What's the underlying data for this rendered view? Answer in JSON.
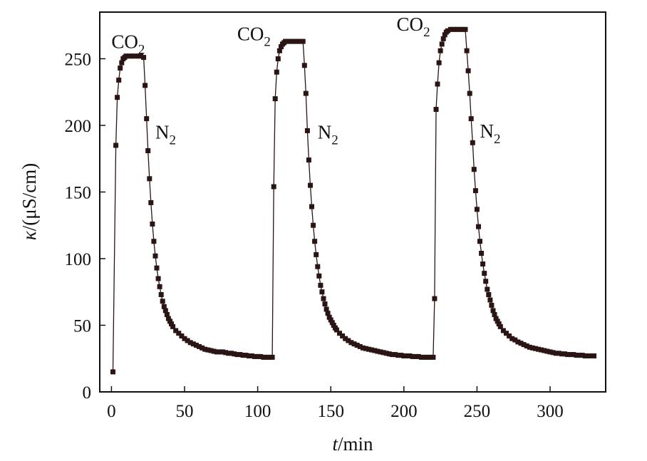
{
  "chart_data": {
    "type": "scatter",
    "title": "",
    "xlabel": {
      "symbol": "t",
      "unit": "/min"
    },
    "ylabel": {
      "symbol": "κ",
      "unit": "/(μS/cm)"
    },
    "xlim": [
      -8,
      338
    ],
    "ylim": [
      0,
      285
    ],
    "x_ticks": [
      0,
      50,
      100,
      150,
      200,
      250,
      300
    ],
    "y_ticks": [
      0,
      50,
      100,
      150,
      200,
      250
    ],
    "grid": false,
    "legend": "none",
    "marker": "square",
    "colors": {
      "series": "#2a1414",
      "axis": "#111111"
    },
    "annotations": [
      {
        "base": "CO",
        "sub": "2",
        "x": 0,
        "y": 258
      },
      {
        "base": "N",
        "sub": "2",
        "x": 30,
        "y": 190
      },
      {
        "base": "CO",
        "sub": "2",
        "x": 86,
        "y": 264
      },
      {
        "base": "N",
        "sub": "2",
        "x": 141,
        "y": 190
      },
      {
        "base": "CO",
        "sub": "2",
        "x": 195,
        "y": 271
      },
      {
        "base": "N",
        "sub": "2",
        "x": 252,
        "y": 191
      }
    ],
    "series": [
      {
        "values": [
          [
            1,
            15
          ],
          [
            3,
            185
          ],
          [
            4,
            221
          ],
          [
            5,
            234
          ],
          [
            6,
            243
          ],
          [
            7,
            247
          ],
          [
            8,
            250
          ],
          [
            9,
            251
          ],
          [
            10,
            252
          ],
          [
            12,
            252
          ],
          [
            14,
            252
          ],
          [
            16,
            252
          ],
          [
            18,
            252
          ],
          [
            20,
            252
          ],
          [
            22,
            251
          ],
          [
            23,
            230
          ],
          [
            24,
            205
          ],
          [
            25,
            181
          ],
          [
            26,
            160
          ],
          [
            27,
            142
          ],
          [
            28,
            126
          ],
          [
            29,
            113
          ],
          [
            30,
            102
          ],
          [
            31,
            93
          ],
          [
            32,
            85
          ],
          [
            33,
            79
          ],
          [
            34,
            73
          ],
          [
            35,
            68
          ],
          [
            36,
            64
          ],
          [
            37,
            61
          ],
          [
            38,
            58
          ],
          [
            39,
            55
          ],
          [
            40,
            53
          ],
          [
            41,
            51
          ],
          [
            42,
            49
          ],
          [
            44,
            46
          ],
          [
            46,
            44
          ],
          [
            48,
            42
          ],
          [
            50,
            40
          ],
          [
            52,
            38.5
          ],
          [
            54,
            37
          ],
          [
            56,
            36
          ],
          [
            58,
            35
          ],
          [
            60,
            34
          ],
          [
            62,
            33
          ],
          [
            64,
            32
          ],
          [
            66,
            31.5
          ],
          [
            68,
            31
          ],
          [
            70,
            30.5
          ],
          [
            72,
            30
          ],
          [
            74,
            30
          ],
          [
            76,
            30
          ],
          [
            78,
            29.5
          ],
          [
            80,
            29
          ],
          [
            82,
            29
          ],
          [
            84,
            28.5
          ],
          [
            86,
            28
          ],
          [
            88,
            28
          ],
          [
            90,
            27.5
          ],
          [
            92,
            27.5
          ],
          [
            94,
            27
          ],
          [
            96,
            27
          ],
          [
            98,
            26.5
          ],
          [
            100,
            26.5
          ],
          [
            102,
            26.5
          ],
          [
            104,
            26
          ],
          [
            106,
            26
          ],
          [
            108,
            26
          ],
          [
            110,
            26
          ],
          [
            111,
            154
          ],
          [
            112,
            220
          ],
          [
            113,
            240
          ],
          [
            114,
            250
          ],
          [
            115,
            256
          ],
          [
            116,
            259
          ],
          [
            117,
            261
          ],
          [
            118,
            262
          ],
          [
            119,
            263
          ],
          [
            121,
            263
          ],
          [
            123,
            263
          ],
          [
            125,
            263
          ],
          [
            127,
            263
          ],
          [
            129,
            263
          ],
          [
            131,
            263
          ],
          [
            132,
            245
          ],
          [
            133,
            224
          ],
          [
            134,
            196
          ],
          [
            135,
            174
          ],
          [
            136,
            155
          ],
          [
            137,
            139
          ],
          [
            138,
            125
          ],
          [
            139,
            113
          ],
          [
            140,
            103
          ],
          [
            141,
            94
          ],
          [
            142,
            87
          ],
          [
            143,
            80
          ],
          [
            144,
            75
          ],
          [
            145,
            70
          ],
          [
            146,
            66
          ],
          [
            147,
            62
          ],
          [
            148,
            59
          ],
          [
            149,
            56
          ],
          [
            150,
            54
          ],
          [
            151,
            52
          ],
          [
            152,
            50
          ],
          [
            153,
            48
          ],
          [
            154,
            46.5
          ],
          [
            156,
            44
          ],
          [
            158,
            42
          ],
          [
            160,
            40
          ],
          [
            162,
            38.5
          ],
          [
            164,
            37
          ],
          [
            166,
            36
          ],
          [
            168,
            35
          ],
          [
            170,
            34
          ],
          [
            172,
            33
          ],
          [
            174,
            32.5
          ],
          [
            176,
            32
          ],
          [
            178,
            31.5
          ],
          [
            180,
            31
          ],
          [
            182,
            30.5
          ],
          [
            184,
            30
          ],
          [
            186,
            29.5
          ],
          [
            188,
            29
          ],
          [
            190,
            28.5
          ],
          [
            192,
            28
          ],
          [
            194,
            28
          ],
          [
            196,
            27.5
          ],
          [
            198,
            27.5
          ],
          [
            200,
            27
          ],
          [
            202,
            27
          ],
          [
            204,
            27
          ],
          [
            206,
            26.5
          ],
          [
            208,
            26.5
          ],
          [
            210,
            26.5
          ],
          [
            212,
            26
          ],
          [
            214,
            26
          ],
          [
            216,
            26
          ],
          [
            218,
            26
          ],
          [
            220,
            26
          ],
          [
            221,
            70
          ],
          [
            222,
            212
          ],
          [
            223,
            231
          ],
          [
            224,
            247
          ],
          [
            225,
            256
          ],
          [
            226,
            261
          ],
          [
            227,
            265
          ],
          [
            228,
            268
          ],
          [
            229,
            270
          ],
          [
            230,
            271
          ],
          [
            232,
            272
          ],
          [
            234,
            272
          ],
          [
            236,
            272
          ],
          [
            238,
            272
          ],
          [
            240,
            272
          ],
          [
            242,
            272
          ],
          [
            243,
            256
          ],
          [
            244,
            241
          ],
          [
            245,
            224
          ],
          [
            246,
            205
          ],
          [
            247,
            187
          ],
          [
            248,
            167
          ],
          [
            249,
            151
          ],
          [
            250,
            137
          ],
          [
            251,
            124
          ],
          [
            252,
            113
          ],
          [
            253,
            104
          ],
          [
            254,
            96
          ],
          [
            255,
            89
          ],
          [
            256,
            83
          ],
          [
            257,
            77
          ],
          [
            258,
            73
          ],
          [
            259,
            69
          ],
          [
            260,
            65
          ],
          [
            261,
            61
          ],
          [
            262,
            58
          ],
          [
            263,
            55
          ],
          [
            264,
            53
          ],
          [
            265,
            51
          ],
          [
            266,
            49
          ],
          [
            268,
            46
          ],
          [
            270,
            44
          ],
          [
            272,
            42
          ],
          [
            274,
            40
          ],
          [
            276,
            39
          ],
          [
            278,
            37.5
          ],
          [
            280,
            36.5
          ],
          [
            282,
            35.5
          ],
          [
            284,
            34.5
          ],
          [
            286,
            33.5
          ],
          [
            288,
            33
          ],
          [
            290,
            32.5
          ],
          [
            292,
            32
          ],
          [
            294,
            31.5
          ],
          [
            296,
            31
          ],
          [
            298,
            30.5
          ],
          [
            300,
            30
          ],
          [
            302,
            29.5
          ],
          [
            304,
            29
          ],
          [
            306,
            29
          ],
          [
            308,
            28.5
          ],
          [
            310,
            28.5
          ],
          [
            312,
            28
          ],
          [
            314,
            28
          ],
          [
            316,
            28
          ],
          [
            318,
            27.5
          ],
          [
            320,
            27.5
          ],
          [
            322,
            27.5
          ],
          [
            324,
            27
          ],
          [
            326,
            27
          ],
          [
            328,
            27
          ],
          [
            330,
            27
          ]
        ]
      }
    ]
  }
}
